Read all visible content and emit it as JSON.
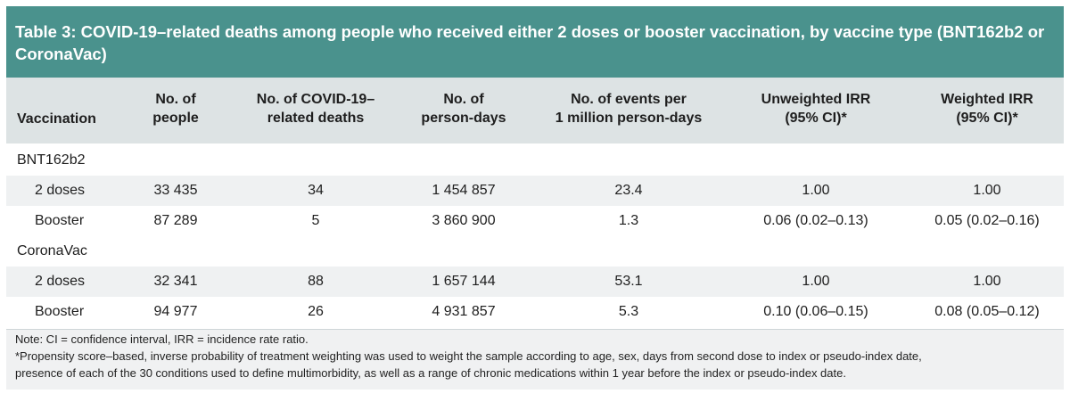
{
  "title": "Table 3: COVID-19–related deaths among people who received either 2 doses or booster vaccination, by vaccine type (BNT162b2 or CoronaVac)",
  "columns": [
    {
      "line1": "",
      "line2": "Vaccination"
    },
    {
      "line1": "No. of",
      "line2": "people"
    },
    {
      "line1": "No. of COVID-19–",
      "line2": "related deaths"
    },
    {
      "line1": "No. of",
      "line2": "person-days"
    },
    {
      "line1": "No. of events per",
      "line2": "1 million person-days"
    },
    {
      "line1": "Unweighted IRR",
      "line2": "(95% CI)*"
    },
    {
      "line1": "Weighted IRR",
      "line2": "(95% CI)*"
    }
  ],
  "groups": [
    {
      "name": "BNT162b2",
      "rows": [
        {
          "label": "2 doses",
          "people": "33 435",
          "deaths": "34",
          "person_days": "1 454 857",
          "events_per_million": "23.4",
          "unweighted_irr": "1.00",
          "weighted_irr": "1.00"
        },
        {
          "label": "Booster",
          "people": "87 289",
          "deaths": "5",
          "person_days": "3 860 900",
          "events_per_million": "1.3",
          "unweighted_irr": "0.06 (0.02–0.13)",
          "weighted_irr": "0.05 (0.02–0.16)"
        }
      ]
    },
    {
      "name": "CoronaVac",
      "rows": [
        {
          "label": "2 doses",
          "people": "32 341",
          "deaths": "88",
          "person_days": "1 657 144",
          "events_per_million": "53.1",
          "unweighted_irr": "1.00",
          "weighted_irr": "1.00"
        },
        {
          "label": "Booster",
          "people": "94 977",
          "deaths": "26",
          "person_days": "4 931 857",
          "events_per_million": "5.3",
          "unweighted_irr": "0.10 (0.06–0.15)",
          "weighted_irr": "0.08 (0.05–0.12)"
        }
      ]
    }
  ],
  "notes": [
    "Note: CI = confidence interval, IRR = incidence rate ratio.",
    "*Propensity score–based, inverse probability of treatment weighting was used to weight the sample according to age, sex, days from second dose to index or pseudo-index date,",
    "presence of each of the 30 conditions used to define multimorbidity, as well as a range of chronic medications within 1 year before the index or pseudo-index date."
  ],
  "colors": {
    "title_background": "#4a928d",
    "header_background": "#dde3e4",
    "shaded_row": "#eff1f2",
    "notes_background": "#f0f1f2"
  }
}
